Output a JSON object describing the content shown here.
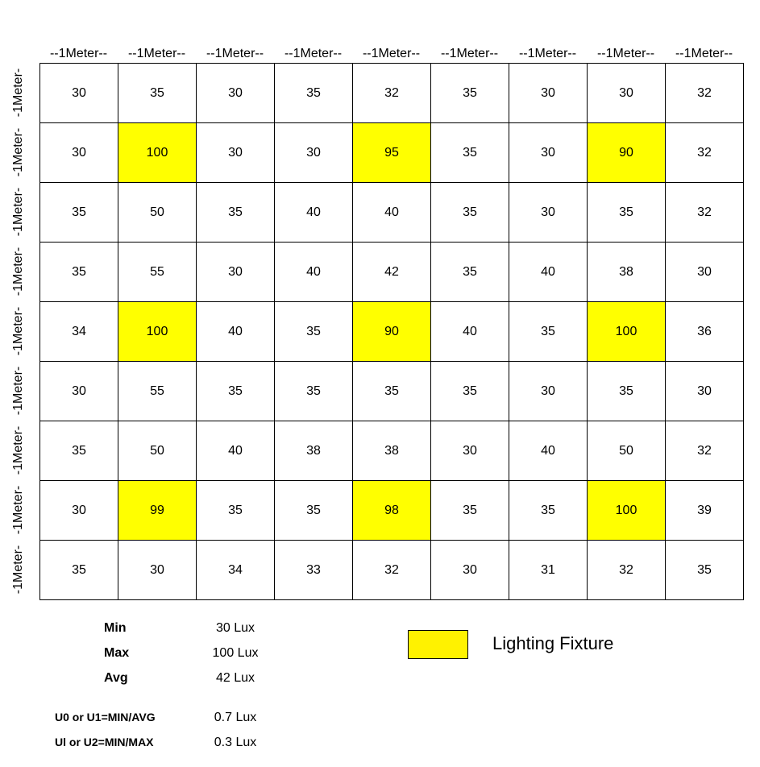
{
  "column_headers": [
    "--1Meter--",
    "--1Meter--",
    "--1Meter--",
    "--1Meter--",
    "--1Meter--",
    "--1Meter--",
    "--1Meter--",
    "--1Meter--",
    "--1Meter--"
  ],
  "row_labels": [
    "-1Meter-",
    "-1Meter-",
    "-1Meter-",
    "-1Meter-",
    "-1Meter-",
    "-1Meter-",
    "-1Meter-",
    "-1Meter-",
    "-1Meter-"
  ],
  "grid": [
    [
      {
        "v": "30"
      },
      {
        "v": "35"
      },
      {
        "v": "30"
      },
      {
        "v": "35"
      },
      {
        "v": "32"
      },
      {
        "v": "35"
      },
      {
        "v": "30"
      },
      {
        "v": "30"
      },
      {
        "v": "32"
      }
    ],
    [
      {
        "v": "30"
      },
      {
        "v": "100",
        "fixture": true
      },
      {
        "v": "30"
      },
      {
        "v": "30"
      },
      {
        "v": "95",
        "fixture": true
      },
      {
        "v": "35"
      },
      {
        "v": "30"
      },
      {
        "v": "90",
        "fixture": true
      },
      {
        "v": "32"
      }
    ],
    [
      {
        "v": "35"
      },
      {
        "v": "50"
      },
      {
        "v": "35"
      },
      {
        "v": "40"
      },
      {
        "v": "40"
      },
      {
        "v": "35"
      },
      {
        "v": "30"
      },
      {
        "v": "35"
      },
      {
        "v": "32"
      }
    ],
    [
      {
        "v": "35"
      },
      {
        "v": "55"
      },
      {
        "v": "30"
      },
      {
        "v": "40"
      },
      {
        "v": "42"
      },
      {
        "v": "35"
      },
      {
        "v": "40"
      },
      {
        "v": "38"
      },
      {
        "v": "30"
      }
    ],
    [
      {
        "v": "34"
      },
      {
        "v": "100",
        "fixture": true
      },
      {
        "v": "40"
      },
      {
        "v": "35"
      },
      {
        "v": "90",
        "fixture": true
      },
      {
        "v": "40"
      },
      {
        "v": "35"
      },
      {
        "v": "100",
        "fixture": true
      },
      {
        "v": "36"
      }
    ],
    [
      {
        "v": "30"
      },
      {
        "v": "55"
      },
      {
        "v": "35"
      },
      {
        "v": "35"
      },
      {
        "v": "35"
      },
      {
        "v": "35"
      },
      {
        "v": "30"
      },
      {
        "v": "35"
      },
      {
        "v": "30"
      }
    ],
    [
      {
        "v": "35"
      },
      {
        "v": "50"
      },
      {
        "v": "40"
      },
      {
        "v": "38"
      },
      {
        "v": "38"
      },
      {
        "v": "30"
      },
      {
        "v": "40"
      },
      {
        "v": "50"
      },
      {
        "v": "32"
      }
    ],
    [
      {
        "v": "30"
      },
      {
        "v": "99",
        "fixture": true
      },
      {
        "v": "35"
      },
      {
        "v": "35"
      },
      {
        "v": "98",
        "fixture": true
      },
      {
        "v": "35"
      },
      {
        "v": "35"
      },
      {
        "v": "100",
        "fixture": true
      },
      {
        "v": "39"
      }
    ],
    [
      {
        "v": "35"
      },
      {
        "v": "30"
      },
      {
        "v": "34"
      },
      {
        "v": "33"
      },
      {
        "v": "32"
      },
      {
        "v": "30"
      },
      {
        "v": "31"
      },
      {
        "v": "32"
      },
      {
        "v": "35"
      }
    ]
  ],
  "stats": {
    "min": {
      "label": "Min",
      "value": "30 Lux"
    },
    "max": {
      "label": "Max",
      "value": "100 Lux"
    },
    "avg": {
      "label": "Avg",
      "value": "42 Lux"
    },
    "u1": {
      "label": "U0 or U1=MIN/AVG",
      "value": "0.7 Lux"
    },
    "u2": {
      "label": "Ul or U2=MIN/MAX",
      "value": "0.3 Lux"
    }
  },
  "legend": {
    "label": "Lighting Fixture",
    "fixture_color": "#ffff00"
  }
}
